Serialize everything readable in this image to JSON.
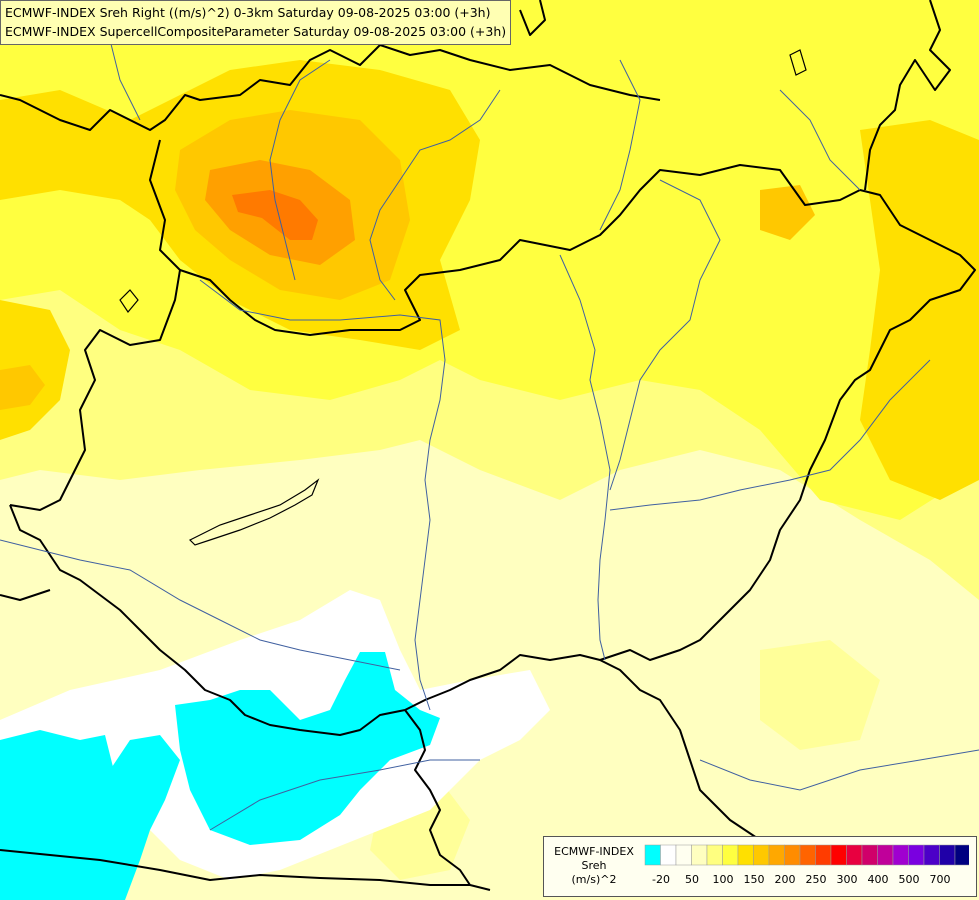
{
  "title": {
    "line1": "ECMWF-INDEX Sreh Right ((m/s)^2) 0-3km Saturday 09-08-2025 03:00 (+3h)",
    "line2": "ECMWF-INDEX SupercellCompositeParameter Saturday 09-08-2025 03:00 (+3h)"
  },
  "legend": {
    "title_line1": "ECMWF-INDEX",
    "title_line2": "Sreh",
    "title_line3": "(m/s)^2",
    "colors": [
      "#00ffff",
      "#ffffff",
      "#fffff0",
      "#ffffc0",
      "#ffff80",
      "#ffff40",
      "#ffe000",
      "#ffc800",
      "#ffa800",
      "#ff8c00",
      "#ff6400",
      "#ff3c00",
      "#ff0000",
      "#e80040",
      "#d0006a",
      "#c0009a",
      "#a000d0",
      "#7a00e0",
      "#4c00c8",
      "#2000a8",
      "#000080"
    ],
    "tick_labels": [
      "-20",
      "50",
      "100",
      "150",
      "200",
      "250",
      "300",
      "400",
      "500",
      "700"
    ]
  },
  "palette": {
    "cyan": "#00ffff",
    "white": "#ffffff",
    "pale": "#ffffc0",
    "light": "#ffff99",
    "yellow": "#ffff40",
    "gold": "#ffe000",
    "amber": "#ffc800",
    "orange": "#ffa000",
    "deep_orange": "#ff7a00",
    "border": "#000000",
    "river": "#4060a0"
  }
}
